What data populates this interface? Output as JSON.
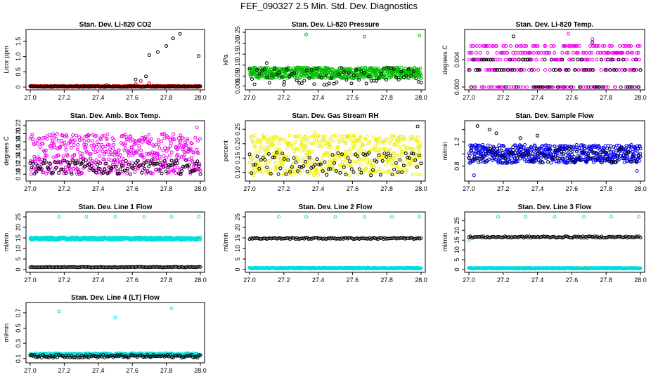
{
  "title": "FEF_090327  2.5 Min. Std. Dev. Diagnostics",
  "chart_data": [
    {
      "type": "scatter",
      "title": "Stan. Dev. Li-820 CO2",
      "ylabel": "Licor ppm",
      "xlim": [
        27.0,
        28.0
      ],
      "ylim": [
        0,
        1.8
      ],
      "xticks": [
        27.0,
        27.2,
        27.4,
        27.6,
        27.8,
        28.0
      ],
      "xtick_labels": [
        "27.0",
        "27.2",
        "27.4",
        "27.6",
        "27.8",
        "28.0"
      ],
      "yticks": [
        0,
        0.5,
        1.0,
        1.5
      ],
      "ytick_labels": [
        "0",
        "0.5",
        "1.0",
        "1.5"
      ],
      "series": [
        {
          "color": "#dd0000",
          "band": [
            0.0,
            0.04
          ],
          "count": 300,
          "extras": [
            [
              27.45,
              0.07
            ],
            [
              27.62,
              0.1
            ],
            [
              27.65,
              0.2
            ],
            [
              27.7,
              0.12
            ]
          ]
        },
        {
          "color": "#000000",
          "band": [
            0.0,
            0.03
          ],
          "count": 120,
          "extras": [
            [
              27.62,
              0.25
            ],
            [
              27.68,
              0.35
            ],
            [
              27.7,
              1.05
            ],
            [
              27.75,
              1.15
            ],
            [
              27.8,
              1.35
            ],
            [
              27.84,
              1.6
            ],
            [
              27.88,
              1.75
            ],
            [
              27.99,
              1.02
            ]
          ]
        }
      ]
    },
    {
      "type": "scatter",
      "title": "Stan. Dev. Li-820 Pressure",
      "ylabel": "kPa",
      "xlim": [
        27.0,
        28.0
      ],
      "ylim": [
        0,
        0.25
      ],
      "xticks": [
        27.0,
        27.2,
        27.4,
        27.6,
        27.8,
        28.0
      ],
      "xtick_labels": [
        "27.0",
        "27.2",
        "27.4",
        "27.6",
        "27.8",
        "28.0"
      ],
      "yticks": [
        0.005,
        0.05,
        0.1,
        0.15,
        0.2,
        0.25
      ],
      "ytick_labels": [
        "0.005",
        "0.05",
        "0.10",
        "0.15",
        "0.20",
        "0.25"
      ],
      "series": [
        {
          "color": "#00bb00",
          "band": [
            0.04,
            0.09
          ],
          "count": 600,
          "extras": [
            [
              27.33,
              0.24
            ],
            [
              27.67,
              0.23
            ],
            [
              27.99,
              0.235
            ]
          ]
        },
        {
          "color": "#000000",
          "band": [
            0.01,
            0.09
          ],
          "count": 70,
          "extras": [
            [
              27.1,
              0.11
            ],
            [
              27.2,
              0.01
            ],
            [
              27.45,
              0.01
            ]
          ]
        }
      ]
    },
    {
      "type": "scatter",
      "title": "Stan. Dev. Li-820 Temp.",
      "ylabel": "degrees C",
      "xlim": [
        27.0,
        28.0
      ],
      "ylim": [
        0,
        0.008
      ],
      "xticks": [
        27.0,
        27.2,
        27.4,
        27.6,
        27.8,
        28.0
      ],
      "xtick_labels": [
        "27.0",
        "27.2",
        "27.4",
        "27.6",
        "27.8",
        "28.0"
      ],
      "yticks": [
        0,
        0.004
      ],
      "ytick_labels": [
        "0.000",
        "0.004"
      ],
      "series": [
        {
          "color": "#ee00ee",
          "levels": [
            0,
            0.0025,
            0.004,
            0.005,
            0.006
          ],
          "count": 350,
          "extras": [
            [
              27.58,
              0.0078
            ],
            [
              27.72,
              0.007
            ]
          ]
        },
        {
          "color": "#000000",
          "levels": [
            0,
            0.0025,
            0.004
          ],
          "count": 80,
          "extras": [
            [
              27.26,
              0.0074
            ],
            [
              27.72,
              0.0065
            ]
          ]
        }
      ]
    },
    {
      "type": "scatter",
      "title": "Stan. Dev. Amb. Box Temp.",
      "ylabel": "degrees C",
      "xlim": [
        27.0,
        28.0
      ],
      "ylim": [
        0.09,
        0.225
      ],
      "xticks": [
        27.0,
        27.2,
        27.4,
        27.6,
        27.8,
        28.0
      ],
      "xtick_labels": [
        "27.0",
        "27.2",
        "27.4",
        "27.6",
        "27.8",
        "28.0"
      ],
      "yticks": [
        0.1,
        0.12,
        0.14,
        0.16,
        0.18,
        0.2,
        0.22
      ],
      "ytick_labels": [
        "0.10",
        "0.12",
        "0.14",
        "0.16",
        "0.18",
        "0.20",
        "0.22"
      ],
      "series": [
        {
          "color": "#ee00ee",
          "band": [
            0.1,
            0.2
          ],
          "count": 500,
          "extras": [
            [
              27.98,
              0.215
            ]
          ]
        },
        {
          "color": "#000000",
          "band": [
            0.1,
            0.135
          ],
          "count": 120,
          "extras": []
        }
      ]
    },
    {
      "type": "scatter",
      "title": "Stan. Dev. Gas Stream RH",
      "ylabel": "percent",
      "xlim": [
        27.0,
        28.0
      ],
      "ylim": [
        0.08,
        0.27
      ],
      "xticks": [
        27.0,
        27.2,
        27.4,
        27.6,
        27.8,
        28.0
      ],
      "xtick_labels": [
        "27.0",
        "27.2",
        "27.4",
        "27.6",
        "27.8",
        "28.0"
      ],
      "yticks": [
        0.1,
        0.15,
        0.2,
        0.25
      ],
      "ytick_labels": [
        "0.10",
        "0.15",
        "0.20",
        "0.25"
      ],
      "series": [
        {
          "color": "#eeee00",
          "band": [
            0.09,
            0.23
          ],
          "count": 500,
          "extras": [
            [
              27.38,
              0.24
            ]
          ]
        },
        {
          "color": "#000000",
          "band": [
            0.09,
            0.17
          ],
          "count": 90,
          "extras": [
            [
              27.98,
              0.26
            ]
          ]
        }
      ]
    },
    {
      "type": "scatter",
      "title": "Stan. Dev. Sample Flow",
      "ylabel": "ml/min",
      "xlim": [
        27.0,
        28.0
      ],
      "ylim": [
        0.6,
        1.5
      ],
      "xticks": [
        27.0,
        27.2,
        27.4,
        27.6,
        27.8,
        28.0
      ],
      "xtick_labels": [
        "27.0",
        "27.2",
        "27.4",
        "27.6",
        "27.8",
        "28.0"
      ],
      "yticks": [
        0.8,
        1.0,
        1.2,
        1.4
      ],
      "ytick_labels": [
        "0.8",
        "",
        "1.2",
        ""
      ],
      "series": [
        {
          "color": "#0000ee",
          "band": [
            0.85,
            1.15
          ],
          "count": 550,
          "extras": [
            [
              27.03,
              0.65
            ],
            [
              27.98,
              0.72
            ]
          ]
        },
        {
          "color": "#000000",
          "band": [
            0.85,
            1.1
          ],
          "count": 90,
          "extras": [
            [
              27.05,
              1.46
            ],
            [
              27.12,
              1.4
            ],
            [
              27.16,
              1.34
            ],
            [
              27.3,
              1.26
            ],
            [
              27.4,
              1.3
            ]
          ]
        }
      ]
    },
    {
      "type": "scatter",
      "title": "Stan. Dev. Line 1 Flow",
      "ylabel": "ml/min",
      "xlim": [
        27.0,
        28.0
      ],
      "ylim": [
        0,
        26
      ],
      "xticks": [
        27.0,
        27.2,
        27.4,
        27.6,
        27.8,
        28.0
      ],
      "xtick_labels": [
        "27.0",
        "27.2",
        "27.4",
        "27.6",
        "27.8",
        "28.0"
      ],
      "yticks": [
        0,
        5,
        10,
        15,
        20,
        25
      ],
      "ytick_labels": [
        "0",
        "5",
        "10",
        "15",
        "20",
        "25"
      ],
      "series": [
        {
          "color": "#00dddd",
          "band": [
            14,
            15.3
          ],
          "count": 450,
          "extras": [
            [
              27.17,
              25
            ],
            [
              27.33,
              25
            ],
            [
              27.5,
              25
            ],
            [
              27.67,
              25
            ],
            [
              27.83,
              25
            ],
            [
              27.99,
              25
            ]
          ]
        },
        {
          "color": "#000000",
          "band": [
            1,
            1.3
          ],
          "count": 120,
          "extras": []
        }
      ]
    },
    {
      "type": "scatter",
      "title": "Stan. Dev. Line 2 Flow",
      "ylabel": "ml/min",
      "xlim": [
        27.0,
        28.0
      ],
      "ylim": [
        0,
        26
      ],
      "xticks": [
        27.0,
        27.2,
        27.4,
        27.6,
        27.8,
        28.0
      ],
      "xtick_labels": [
        "27.0",
        "27.2",
        "27.4",
        "27.6",
        "27.8",
        "28.0"
      ],
      "yticks": [
        0,
        5,
        10,
        15,
        20,
        25
      ],
      "ytick_labels": [
        "0",
        "5",
        "10",
        "15",
        "20",
        "25"
      ],
      "series": [
        {
          "color": "#00dddd",
          "band": [
            0.4,
            0.9
          ],
          "count": 450,
          "extras": [
            [
              27.0,
              14.5
            ],
            [
              27.17,
              25
            ],
            [
              27.33,
              25
            ],
            [
              27.5,
              25
            ],
            [
              27.67,
              25
            ],
            [
              27.83,
              25
            ],
            [
              27.99,
              25
            ]
          ]
        },
        {
          "color": "#000000",
          "band": [
            14.4,
            15.2
          ],
          "count": 120,
          "extras": []
        }
      ]
    },
    {
      "type": "scatter",
      "title": "Stan. Dev. Line 3 Flow",
      "ylabel": "ml/min",
      "xlim": [
        27.0,
        28.0
      ],
      "ylim": [
        0,
        28
      ],
      "xticks": [
        27.0,
        27.2,
        27.4,
        27.6,
        27.8,
        28.0
      ],
      "xtick_labels": [
        "27.0",
        "27.2",
        "27.4",
        "27.6",
        "27.8",
        "28.0"
      ],
      "yticks": [
        0,
        5,
        10,
        15,
        20,
        25
      ],
      "ytick_labels": [
        "0",
        "5",
        "10",
        "15",
        "20",
        "25"
      ],
      "series": [
        {
          "color": "#00dddd",
          "band": [
            0.4,
            0.9
          ],
          "count": 450,
          "extras": [
            [
              27.0,
              15
            ],
            [
              27.17,
              27
            ],
            [
              27.33,
              27
            ],
            [
              27.5,
              27
            ],
            [
              27.67,
              27
            ],
            [
              27.83,
              27
            ],
            [
              27.99,
              27
            ]
          ]
        },
        {
          "color": "#000000",
          "band": [
            16.2,
            17
          ],
          "count": 120,
          "extras": []
        }
      ]
    },
    {
      "type": "scatter",
      "title": "Stan. Dev. Line 4 (LT) Flow",
      "ylabel": "ml/min",
      "xlim": [
        27.0,
        28.0
      ],
      "ylim": [
        0.08,
        0.8
      ],
      "xticks": [
        27.0,
        27.2,
        27.4,
        27.6,
        27.8,
        28.0
      ],
      "xtick_labels": [
        "27.0",
        "27.2",
        "27.4",
        "27.6",
        "27.8",
        "28.0"
      ],
      "yticks": [
        0.1,
        0.3,
        0.5,
        0.7
      ],
      "ytick_labels": [
        "0.1",
        "0.3",
        "0.5",
        "0.7"
      ],
      "series": [
        {
          "color": "#00dddd",
          "band": [
            0.13,
            0.17
          ],
          "count": 450,
          "extras": [
            [
              27.17,
              0.72
            ],
            [
              27.5,
              0.64
            ],
            [
              27.83,
              0.76
            ]
          ]
        },
        {
          "color": "#000000",
          "band": [
            0.11,
            0.15
          ],
          "count": 120,
          "extras": []
        }
      ]
    }
  ]
}
